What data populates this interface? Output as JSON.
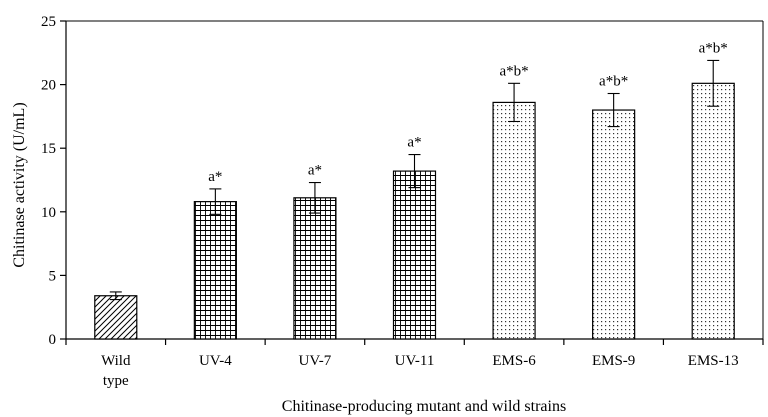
{
  "chart_data": {
    "type": "bar",
    "title": "",
    "xlabel": "Chitinase-producing mutant and wild strains",
    "ylabel": "Chitinase activity (U/mL)",
    "ylim": [
      0,
      25
    ],
    "yticks": [
      0,
      5,
      10,
      15,
      20,
      25
    ],
    "grid": false,
    "legend": "none",
    "categories": [
      [
        "Wild",
        "type"
      ],
      [
        "UV-4"
      ],
      [
        "UV-7"
      ],
      [
        "UV-11"
      ],
      [
        "EMS-6"
      ],
      [
        "EMS-9"
      ],
      [
        "EMS-13"
      ]
    ],
    "values": [
      3.4,
      10.8,
      11.1,
      13.2,
      18.6,
      18.0,
      20.1
    ],
    "errors": [
      0.3,
      1.0,
      1.2,
      1.3,
      1.5,
      1.3,
      1.8
    ],
    "annotations": [
      "",
      "a*",
      "a*",
      "a*",
      "a*b*",
      "a*b*",
      "a*b*"
    ],
    "patterns": [
      "diagonal",
      "grid",
      "grid",
      "grid",
      "dots",
      "dots",
      "dots"
    ]
  }
}
